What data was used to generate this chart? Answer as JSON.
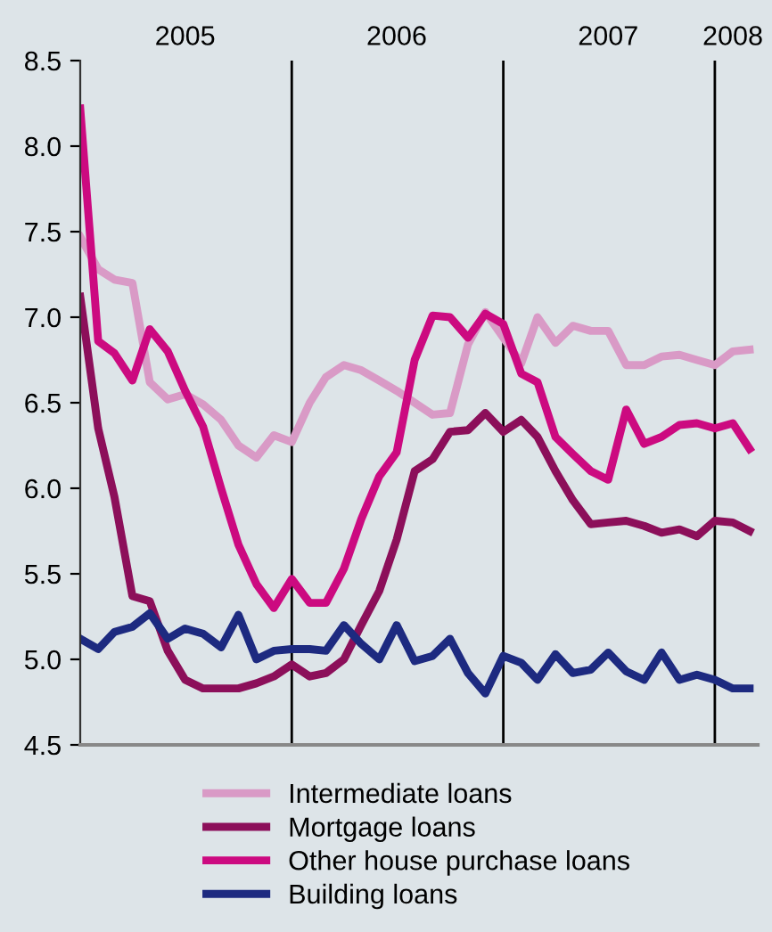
{
  "chart_data": {
    "type": "line",
    "x": [
      "2005-01",
      "2005-02",
      "2005-03",
      "2005-04",
      "2005-05",
      "2005-06",
      "2005-07",
      "2005-08",
      "2005-09",
      "2005-10",
      "2005-11",
      "2005-12",
      "2006-01",
      "2006-02",
      "2006-03",
      "2006-04",
      "2006-05",
      "2006-06",
      "2006-07",
      "2006-08",
      "2006-09",
      "2006-10",
      "2006-11",
      "2006-12",
      "2007-01",
      "2007-02",
      "2007-03",
      "2007-04",
      "2007-05",
      "2007-06",
      "2007-07",
      "2007-08",
      "2007-09",
      "2007-10",
      "2007-11",
      "2007-12",
      "2008-01",
      "2008-02",
      "2008-03"
    ],
    "series": [
      {
        "name": "Intermediate loans",
        "color": "#d99ac6",
        "values": [
          7.47,
          7.28,
          7.22,
          7.2,
          6.62,
          6.52,
          6.55,
          6.49,
          6.4,
          6.25,
          6.18,
          6.31,
          6.27,
          6.5,
          6.65,
          6.72,
          6.69,
          6.63,
          6.57,
          6.5,
          6.43,
          6.44,
          6.84,
          7.03,
          6.88,
          6.73,
          7.0,
          6.85,
          6.95,
          6.92,
          6.92,
          6.72,
          6.72,
          6.77,
          6.78,
          6.75,
          6.72,
          6.8,
          6.81
        ]
      },
      {
        "name": "Mortgage loans",
        "color": "#8c0f5a",
        "values": [
          7.12,
          6.35,
          5.95,
          5.37,
          5.34,
          5.05,
          4.88,
          4.83,
          4.83,
          4.83,
          4.86,
          4.9,
          4.97,
          4.9,
          4.92,
          5.0,
          5.2,
          5.4,
          5.7,
          6.1,
          6.17,
          6.33,
          6.34,
          6.44,
          6.33,
          6.4,
          6.3,
          6.1,
          5.93,
          5.79,
          5.8,
          5.81,
          5.78,
          5.74,
          5.76,
          5.72,
          5.81,
          5.8,
          5.75
        ]
      },
      {
        "name": "Other house purchase loans",
        "color": "#cc0a80",
        "values": [
          8.22,
          6.86,
          6.79,
          6.63,
          6.93,
          6.8,
          6.57,
          6.36,
          6.0,
          5.67,
          5.44,
          5.3,
          5.47,
          5.33,
          5.33,
          5.53,
          5.82,
          6.07,
          6.21,
          6.75,
          7.01,
          7.0,
          6.88,
          7.02,
          6.96,
          6.67,
          6.62,
          6.3,
          6.2,
          6.1,
          6.05,
          6.46,
          6.26,
          6.3,
          6.37,
          6.38,
          6.35,
          6.38,
          6.23
        ]
      },
      {
        "name": "Building loans",
        "color": "#1d2a80",
        "values": [
          5.12,
          5.06,
          5.16,
          5.19,
          5.27,
          5.12,
          5.18,
          5.15,
          5.07,
          5.26,
          5.0,
          5.05,
          5.06,
          5.06,
          5.05,
          5.2,
          5.09,
          5.0,
          5.2,
          4.99,
          5.02,
          5.12,
          4.92,
          4.8,
          5.02,
          4.98,
          4.88,
          5.03,
          4.92,
          4.94,
          5.04,
          4.93,
          4.88,
          5.04,
          4.88,
          4.91,
          4.88,
          4.83,
          4.83
        ]
      }
    ],
    "xlim": [
      "2005-01",
      "2008-03-15"
    ],
    "xticks": [
      {
        "value": "2005-07",
        "label": "2005"
      },
      {
        "value": "2006-07",
        "label": "2006"
      },
      {
        "value": "2007-07",
        "label": "2007"
      },
      {
        "value": "2008-02",
        "label": "2008"
      }
    ],
    "ylim": [
      4.5,
      8.5
    ],
    "yticks": [
      {
        "value": 4.5,
        "label": "4.5"
      },
      {
        "value": 5,
        "label": "5.0"
      },
      {
        "value": 5.5,
        "label": "5.5"
      },
      {
        "value": 6,
        "label": "6.0"
      },
      {
        "value": 6.5,
        "label": "6.5"
      },
      {
        "value": 7,
        "label": "7.0"
      },
      {
        "value": 7.5,
        "label": "7.5"
      },
      {
        "value": 8,
        "label": "8.0"
      },
      {
        "value": 8.5,
        "label": "8.5"
      }
    ],
    "ref_lines": [
      {
        "axis": "x",
        "value": "2006-01",
        "color": "#000000"
      },
      {
        "axis": "x",
        "value": "2007-01",
        "color": "#000000"
      },
      {
        "axis": "x",
        "value": "2008-01",
        "color": "#000000"
      }
    ],
    "grid": false,
    "legend": "bottom",
    "marker": "none",
    "line_style": "solid"
  }
}
